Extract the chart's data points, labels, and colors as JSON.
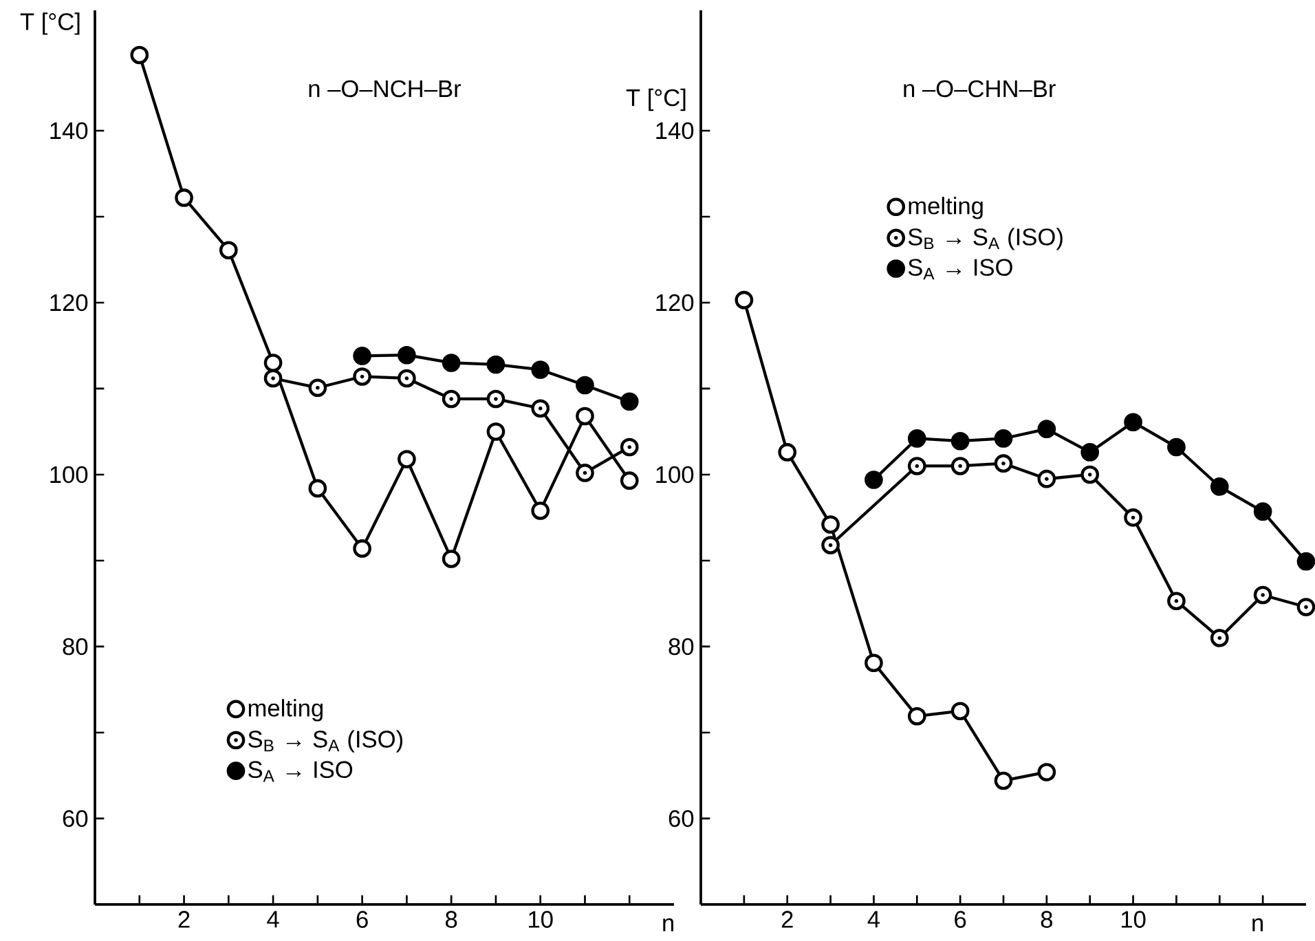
{
  "chart_data": [
    {
      "type": "line",
      "title": "n –O–NCH–Br",
      "xlabel": "n",
      "ylabel": "T [°C]",
      "xlim": [
        0,
        13
      ],
      "ylim": [
        50,
        154
      ],
      "legend": "bottom left",
      "xticks": [
        {
          "value": 1,
          "label": null
        },
        2,
        {
          "value": 3,
          "label": null
        },
        4,
        {
          "value": 5,
          "label": null
        },
        6,
        {
          "value": 7,
          "label": null
        },
        8,
        {
          "value": 9,
          "label": null
        },
        10,
        {
          "value": 11,
          "label": null
        },
        {
          "value": 12,
          "label": null
        }
      ],
      "yticks": [
        60,
        {
          "value": 70,
          "label": null
        },
        80,
        {
          "value": 90,
          "label": null
        },
        100,
        {
          "value": 110,
          "label": null
        },
        120,
        {
          "value": 130,
          "label": null
        },
        140
      ],
      "series": [
        {
          "name": "melting",
          "color": "#000000",
          "marker": "circle",
          "x": [
            1,
            2,
            3,
            4,
            5,
            6,
            7,
            8,
            9,
            10,
            11,
            12
          ],
          "values": [
            148.8,
            132.2,
            126.1,
            113,
            98.4,
            91.4,
            101.8,
            90.2,
            105,
            95.8,
            106.8,
            99.3
          ]
        },
        {
          "name": "S$_{B}$ → S$_{A}$ (ISO)",
          "color": "#000000",
          "marker": "dot circle",
          "x": [
            4,
            5,
            6,
            7,
            8,
            9,
            10,
            11,
            12
          ],
          "values": [
            111.2,
            110.1,
            111.4,
            111.2,
            108.8,
            108.8,
            107.7,
            100.2,
            103.2
          ]
        },
        {
          "name": "S$_{A}$ → ISO",
          "color": "#000000",
          "marker": "filled circle",
          "x": [
            6,
            7,
            8,
            9,
            10,
            11,
            12
          ],
          "values": [
            113.8,
            113.9,
            113,
            112.8,
            112.2,
            110.4,
            108.5
          ]
        }
      ]
    },
    {
      "type": "line",
      "title": "n –O–CHN–Br",
      "xlabel": "n",
      "ylabel": "T [°C]",
      "xlim": [
        0,
        14
      ],
      "ylim": [
        50,
        154
      ],
      "legend": "top",
      "xticks": [
        {
          "value": 1,
          "label": null
        },
        2,
        {
          "value": 3,
          "label": null
        },
        4,
        {
          "value": 5,
          "label": null
        },
        6,
        {
          "value": 7,
          "label": null
        },
        8,
        {
          "value": 9,
          "label": null
        },
        10,
        {
          "value": 11,
          "label": null
        },
        {
          "value": 12,
          "label": null
        },
        {
          "value": 13,
          "label": null
        }
      ],
      "yticks": [
        60,
        {
          "value": 70,
          "label": null
        },
        80,
        {
          "value": 90,
          "label": null
        },
        100,
        {
          "value": 110,
          "label": null
        },
        120,
        {
          "value": 130,
          "label": null
        },
        140
      ],
      "series": [
        {
          "name": "melting",
          "color": "#000000",
          "marker": "circle",
          "x": [
            1,
            2,
            3,
            4,
            5,
            6,
            7,
            8
          ],
          "values": [
            120.3,
            102.6,
            94.2,
            78.1,
            71.9,
            72.5,
            64.4,
            65.4
          ]
        },
        {
          "name": "S$_{B}$ → S$_{A}$ (ISO)",
          "color": "#000000",
          "marker": "dot circle",
          "x": [
            3,
            5,
            6,
            7,
            8,
            9,
            10,
            11,
            12,
            13,
            14
          ],
          "values": [
            91.8,
            101,
            101,
            101.3,
            99.5,
            100,
            95,
            85.3,
            81,
            86,
            84.6
          ]
        },
        {
          "name": "S$_{A}$ → ISO",
          "color": "#000000",
          "marker": "filled circle",
          "x": [
            4,
            5,
            6,
            7,
            8,
            9,
            10,
            11,
            12,
            13,
            14
          ],
          "values": [
            99.4,
            104.2,
            103.9,
            104.2,
            105.3,
            102.6,
            106.1,
            103.2,
            98.6,
            95.7,
            89.9
          ]
        }
      ]
    }
  ]
}
